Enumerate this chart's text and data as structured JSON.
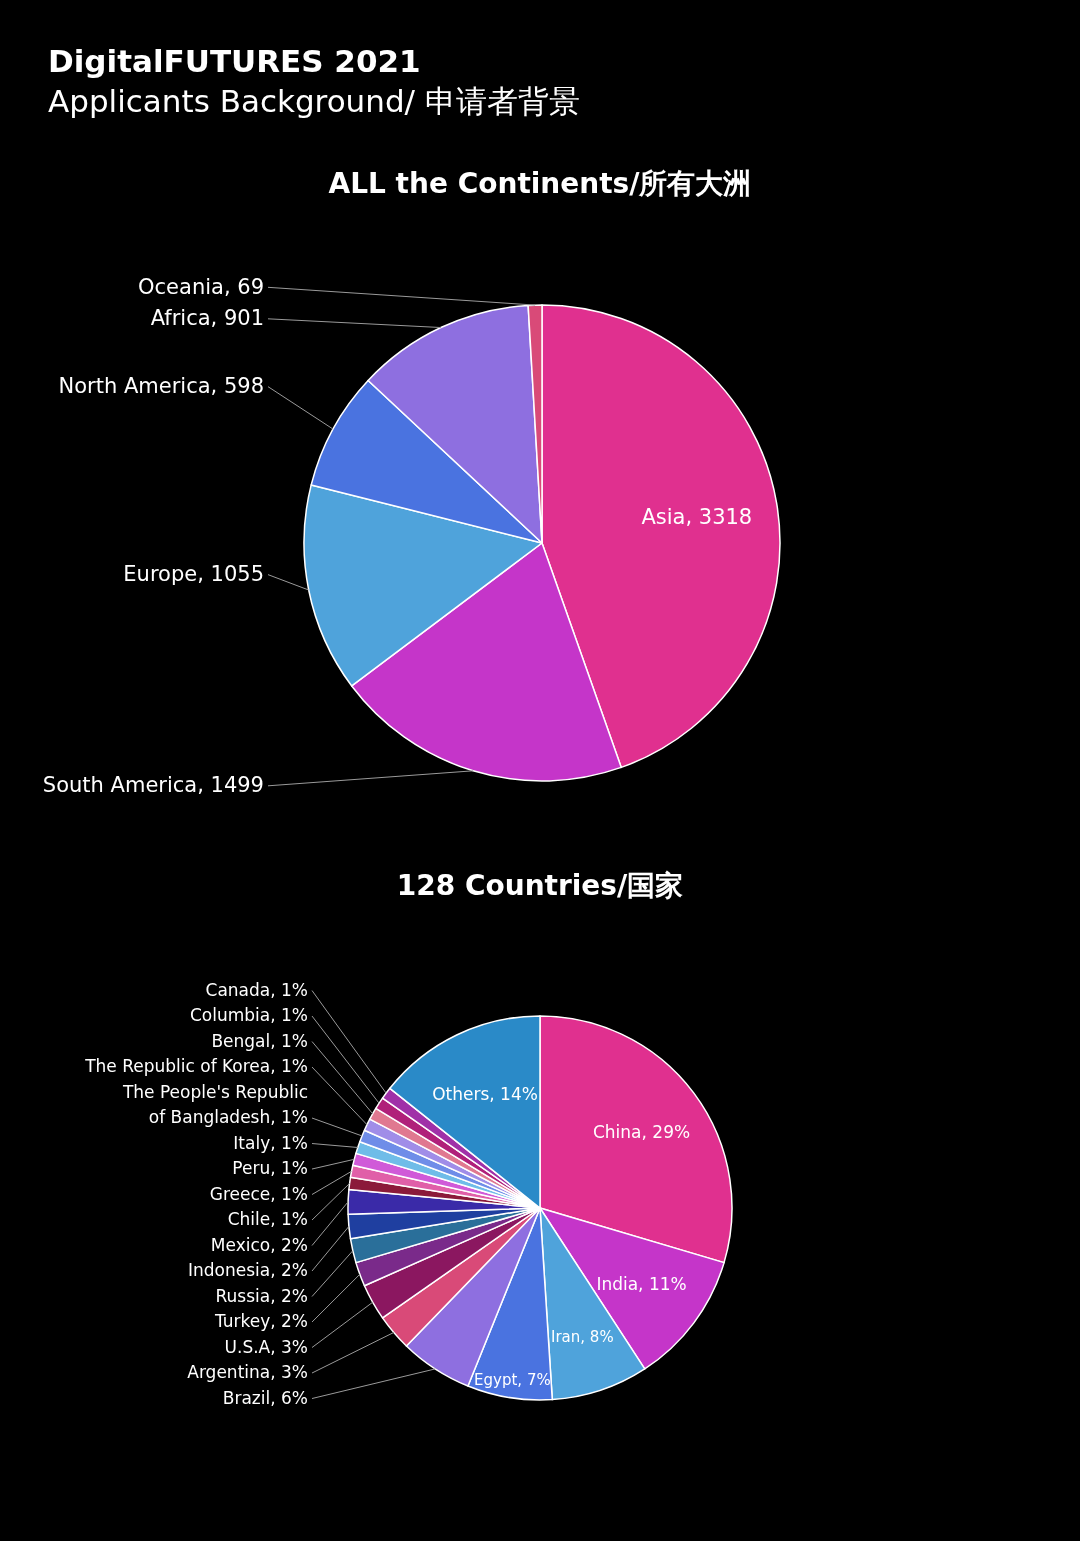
{
  "chart_data": [
    {
      "type": "pie",
      "title": "ALL the Continents/所有大洲",
      "annotations": [
        "DigitalFUTURES 2021",
        "Applicants Background/ 申请者背景"
      ],
      "categories": [
        "Asia",
        "South America",
        "Europe",
        "North America",
        "Africa",
        "Oceania"
      ],
      "values": [
        3318,
        1499,
        1055,
        598,
        901,
        69
      ],
      "colors": [
        "#e0308f",
        "#c535c9",
        "#4fa3db",
        "#4a73e0",
        "#8e6fe0",
        "#d94a78"
      ],
      "value_labels": [
        "3318",
        "1499",
        "1055",
        "598",
        "901",
        "69"
      ],
      "legend": false
    },
    {
      "type": "pie",
      "title": "128 Countries/国家",
      "categories": [
        "China",
        "India",
        "Iran",
        "Egypt",
        "Brazil",
        "Argentina",
        "U.S.A",
        "Turkey",
        "Russia",
        "Indonesia",
        "Mexico",
        "Chile",
        "Greece",
        "Peru",
        "Italy",
        "The People's Republic of Bangladesh",
        "The Republic of Korea",
        "Bengal",
        "Columbia",
        "Canada",
        "Others"
      ],
      "values": [
        29,
        11,
        8,
        7,
        6,
        3,
        3,
        2,
        2,
        2,
        2,
        1,
        1,
        1,
        1,
        1,
        1,
        1,
        1,
        1,
        14
      ],
      "value_labels": [
        "29%",
        "11%",
        "8%",
        "7%",
        "6%",
        "3%",
        "3%",
        "2%",
        "2%",
        "2%",
        "2%",
        "1%",
        "1%",
        "1%",
        "1%",
        "1%",
        "1%",
        "1%",
        "1%",
        "1%",
        "14%"
      ],
      "colors": [
        "#e0308f",
        "#c535c9",
        "#4fa3db",
        "#4a73e0",
        "#8e6fe0",
        "#d94a78",
        "#8b1760",
        "#7a2a8a",
        "#2a6f9a",
        "#1f3fa0",
        "#3a2aa8",
        "#8b1a3a",
        "#e05fa8",
        "#d05ad8",
        "#6fbce8",
        "#6f8de8",
        "#a08de8",
        "#e07890",
        "#b0207a",
        "#a030a8",
        "#2a8ac8"
      ],
      "legend": false
    }
  ]
}
